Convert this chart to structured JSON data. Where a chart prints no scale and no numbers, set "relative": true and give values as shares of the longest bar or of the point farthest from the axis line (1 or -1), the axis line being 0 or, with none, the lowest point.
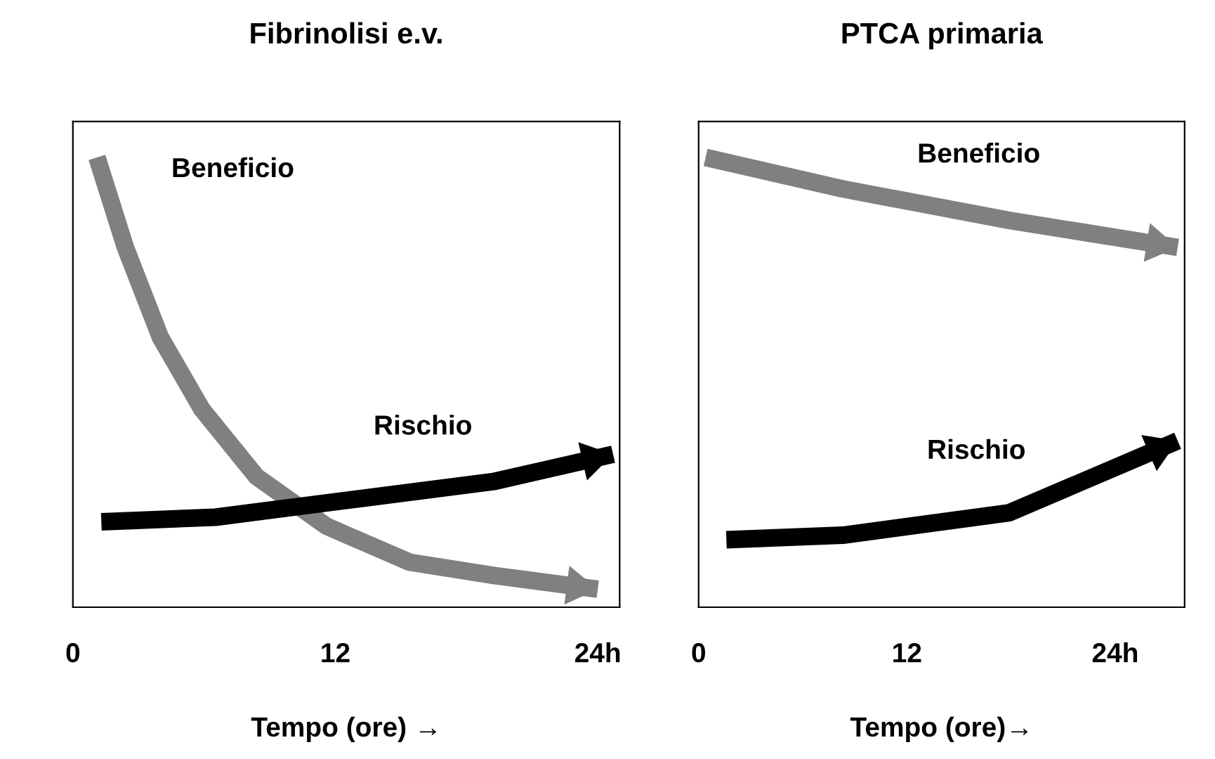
{
  "chart_data": [
    {
      "type": "line",
      "title": "Fibrinolisi e.v.",
      "xlabel": "Tempo (ore) →",
      "relative": true,
      "xlim": [
        0,
        25
      ],
      "xticks": [
        0,
        12,
        {
          "value": 24,
          "label": "24h"
        }
      ],
      "tick_labels": "x",
      "grid": false,
      "legend": false,
      "marker": "none",
      "line_style": "solid",
      "series": [
        {
          "name": "Beneficio",
          "color": "#808080",
          "x": [
            1.1,
            2.4,
            4.0,
            5.9,
            8.4,
            11.6,
            15.4,
            19.3,
            24.0
          ],
          "values": [
            1,
            0.8,
            0.6,
            0.44,
            0.29,
            0.18,
            0.1,
            0.07,
            0.04
          ]
        },
        {
          "name": "Rischio",
          "color": "#000000",
          "x": [
            1.3,
            6.5,
            12.9,
            19.3,
            24.7
          ],
          "values": [
            0.19,
            0.2,
            0.24,
            0.28,
            0.34
          ]
        }
      ]
    },
    {
      "type": "line",
      "title": "PTCA primaria",
      "xlabel": "Tempo (ore)→",
      "relative": true,
      "xlim": [
        0,
        28
      ],
      "xticks": [
        0,
        12,
        {
          "value": 24,
          "label": "24h"
        }
      ],
      "tick_labels": "x",
      "grid": false,
      "legend": false,
      "marker": "none",
      "line_style": "solid",
      "series": [
        {
          "name": "Beneficio",
          "color": "#808080",
          "x": [
            0.4,
            8.3,
            17.9,
            27.6
          ],
          "values": [
            1,
            0.93,
            0.86,
            0.8
          ]
        },
        {
          "name": "Rischio",
          "color": "#000000",
          "x": [
            1.6,
            8.3,
            17.9,
            27.6
          ],
          "values": [
            0.15,
            0.16,
            0.21,
            0.37
          ]
        }
      ]
    }
  ]
}
